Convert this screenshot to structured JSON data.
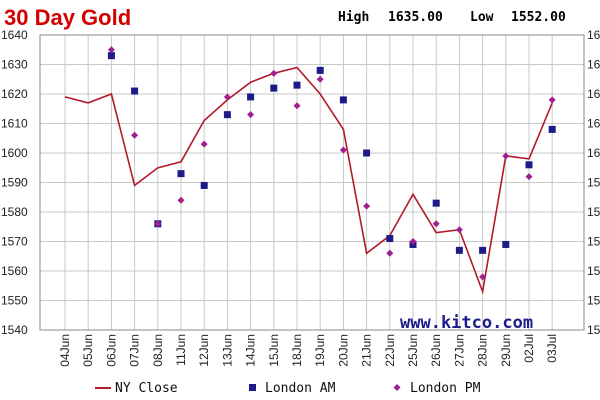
{
  "header": {
    "title": "30 Day Gold",
    "high_label": "High",
    "high_value": "1635.00",
    "low_label": "Low",
    "low_value": "1552.00"
  },
  "watermark": "www.kitco.com",
  "colors": {
    "title": "#d40000",
    "ny_close": "#b11a2a",
    "london_am": "#1b1b8a",
    "london_pm": "#a0208f",
    "watermark": "#1b1b8a",
    "grid": "#c8c8c8",
    "plot_border": "#888888"
  },
  "legend": {
    "items": [
      {
        "label": "NY Close",
        "marker": "line"
      },
      {
        "label": "London AM",
        "marker": "square"
      },
      {
        "label": "London PM",
        "marker": "diamond"
      }
    ]
  },
  "chart_data": {
    "type": "line",
    "categories": [
      "04Jun",
      "05Jun",
      "06Jun",
      "07Jun",
      "08Jun",
      "11Jun",
      "12Jun",
      "13Jun",
      "14Jun",
      "15Jun",
      "18Jun",
      "19Jun",
      "20Jun",
      "21Jun",
      "22Jun",
      "25Jun",
      "26Jun",
      "27Jun",
      "28Jun",
      "29Jun",
      "02Jul",
      "03Jul"
    ],
    "y_ticks_left": [
      "1540",
      "1550",
      "1560",
      "1570",
      "1580",
      "1590",
      "1600",
      "1610",
      "1620",
      "1630",
      "1640"
    ],
    "y_ticks_right": [
      "15",
      "15",
      "15",
      "15",
      "15",
      "15",
      "16",
      "16",
      "16",
      "16",
      "16"
    ],
    "ylim": [
      1540,
      1640
    ],
    "grid": true,
    "legend_position": "bottom",
    "series": [
      {
        "name": "NY Close",
        "style": "line",
        "values": [
          1619,
          1617,
          1620,
          1589,
          1595,
          1597,
          1611,
          1618,
          1624,
          1627,
          1629,
          1620,
          1608,
          1566,
          1572,
          1586,
          1573,
          1574,
          1553,
          1599,
          1598,
          1617
        ]
      },
      {
        "name": "London AM",
        "style": "square",
        "values": [
          null,
          null,
          1633,
          1621,
          1576,
          1593,
          1589,
          1613,
          1619,
          1622,
          1623,
          1628,
          1618,
          1600,
          1571,
          1569,
          1583,
          1567,
          1567,
          1569,
          1596,
          1608
        ]
      },
      {
        "name": "London PM",
        "style": "diamond",
        "values": [
          null,
          null,
          1635,
          1606,
          1576,
          1584,
          1603,
          1619,
          1613,
          1627,
          1616,
          1625,
          1601,
          1582,
          1566,
          1570,
          1576,
          1574,
          1558,
          1599,
          1592,
          1618
        ]
      }
    ]
  }
}
